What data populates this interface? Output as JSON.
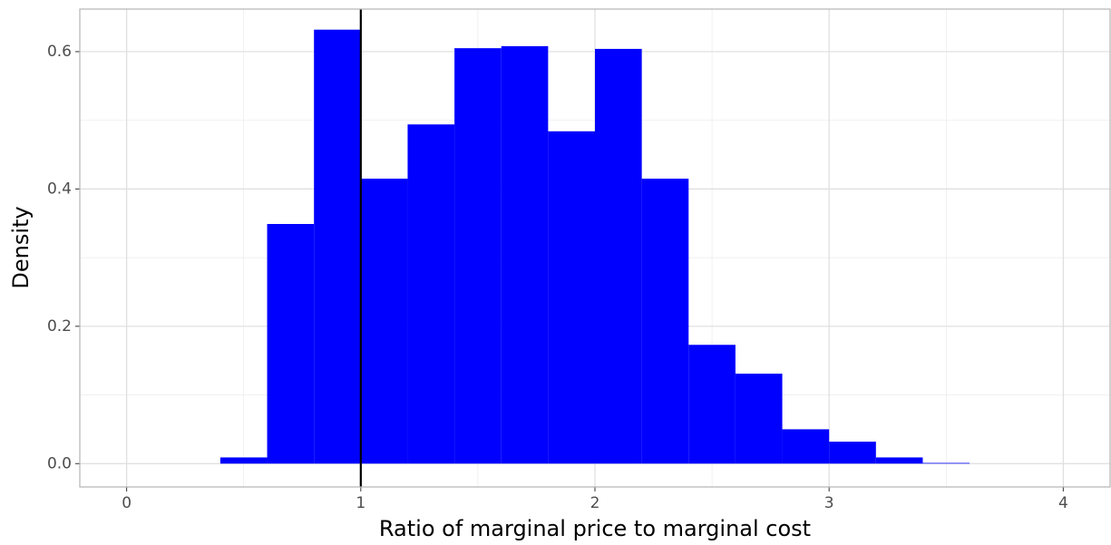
{
  "chart_data": {
    "type": "histogram",
    "x_label": "Ratio of marginal price to marginal cost",
    "y_label": "Density",
    "bins": [
      0.4,
      0.6,
      0.8,
      1.0,
      1.2,
      1.4,
      1.6,
      1.8,
      2.0,
      2.2,
      2.4,
      2.6,
      2.8,
      3.0,
      3.2,
      3.4,
      3.6
    ],
    "values": [
      0.009,
      0.349,
      0.632,
      0.415,
      0.494,
      0.605,
      0.608,
      0.484,
      0.604,
      0.415,
      0.173,
      0.131,
      0.05,
      0.032,
      0.009,
      0.001
    ],
    "color": "#0000ff",
    "vline": 1,
    "vline_color": "#000000",
    "xlim": [
      -0.2,
      4.2
    ],
    "xticks": [
      0,
      1,
      2,
      3,
      4
    ],
    "xminor": [
      0.5,
      1.5,
      2.5,
      3.5
    ],
    "ylim": [
      -0.034,
      0.662
    ],
    "yticks": [
      {
        "value": 0,
        "label": "0.0"
      },
      0.2,
      0.4,
      0.6
    ],
    "yminor": [
      0.1,
      0.3,
      0.5
    ],
    "grid": true
  }
}
